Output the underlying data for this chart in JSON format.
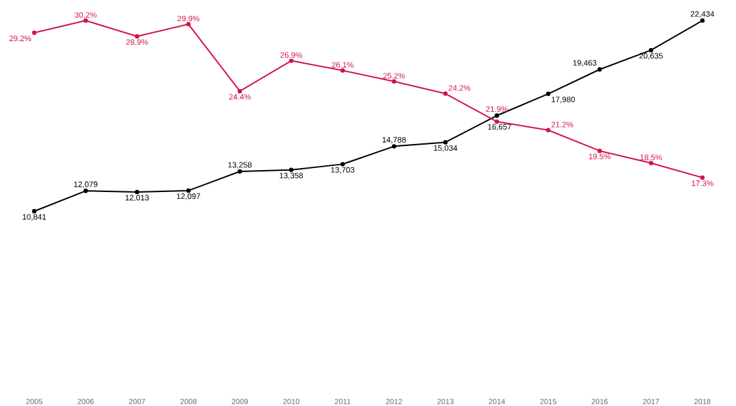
{
  "chart_data": {
    "type": "line",
    "categories": [
      "2005",
      "2006",
      "2007",
      "2008",
      "2009",
      "2010",
      "2011",
      "2012",
      "2013",
      "2014",
      "2015",
      "2016",
      "2017",
      "2018"
    ],
    "series": [
      {
        "color": "#000000",
        "values": [
          10841,
          12079,
          12013,
          12097,
          13258,
          13358,
          13703,
          14788,
          15034,
          16657,
          17980,
          19463,
          20635,
          22434
        ],
        "value_labels": [
          "10,841",
          "12,079",
          "12,013",
          "12,097",
          "13,258",
          "13,358",
          "13,703",
          "14,788",
          "15,034",
          "16,657",
          "17,980",
          "19,463",
          "20,635",
          "22,434"
        ]
      },
      {
        "color": "#d0164a",
        "axis": "y2",
        "values": [
          29.2,
          30.2,
          28.9,
          29.9,
          24.4,
          26.9,
          26.1,
          25.2,
          24.2,
          21.9,
          21.2,
          19.5,
          18.5,
          17.3
        ],
        "value_labels": [
          "29.2%",
          "30.2%",
          "28.9%",
          "29.9%",
          "24.4%",
          "26.9%",
          "26.1%",
          "25.2%",
          "24.2%",
          "21.9%",
          "21.2%",
          "19.5%",
          "18.5%",
          "17.3%"
        ]
      }
    ],
    "tick_labels": "x",
    "marker": "circle",
    "line_style": "solid"
  }
}
